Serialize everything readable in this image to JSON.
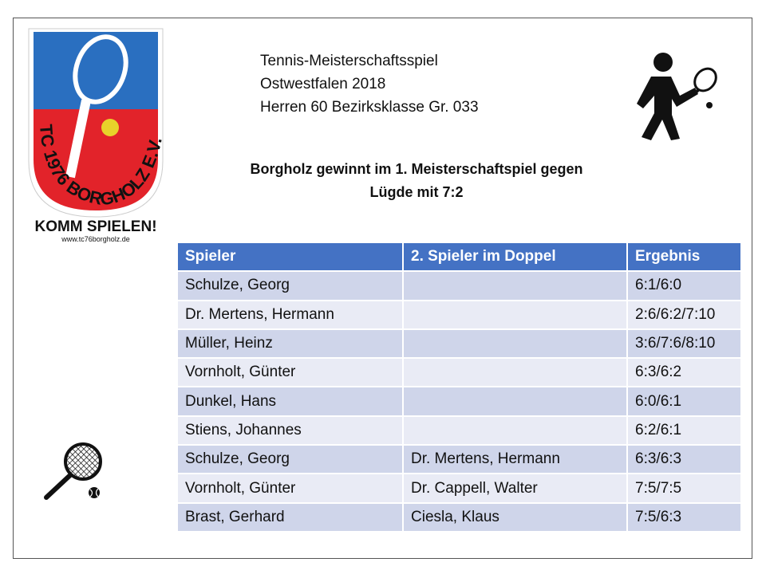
{
  "logo": {
    "arc_text": "TC 1976 BORGHOLZ E.V.",
    "slogan": "KOMM SPIELEN!",
    "url": "www.tc76borgholz.de"
  },
  "header": {
    "lines": [
      "Tennis-Meisterschaftsspiel",
      "Ostwestfalen 2018",
      "Herren 60 Bezirksklasse Gr. 033"
    ]
  },
  "headline": {
    "lines": [
      "Borgholz gewinnt im 1. Meisterschaftspiel gegen",
      "Lügde mit 7:2"
    ]
  },
  "table": {
    "columns": [
      "Spieler",
      "2. Spieler im Doppel",
      "Ergebnis"
    ],
    "rows": [
      [
        "Schulze, Georg",
        null,
        "6:1/6:0"
      ],
      [
        "Dr. Mertens, Hermann",
        null,
        "2:6/6:2/7:10"
      ],
      [
        "Müller, Heinz",
        null,
        "3:6/7:6/8:10"
      ],
      [
        "Vornholt, Günter",
        null,
        "6:3/6:2"
      ],
      [
        "Dunkel, Hans",
        null,
        "6:0/6:1"
      ],
      [
        "Stiens, Johannes",
        null,
        "6:2/6:1"
      ],
      [
        "Schulze, Georg",
        "Dr. Mertens, Hermann",
        "6:3/6:3"
      ],
      [
        "Vornholt, Günter",
        "Dr. Cappell, Walter",
        "7:5/7:5"
      ],
      [
        "Brast, Gerhard",
        "Ciesla, Klaus",
        "7:5/6:3"
      ]
    ]
  }
}
